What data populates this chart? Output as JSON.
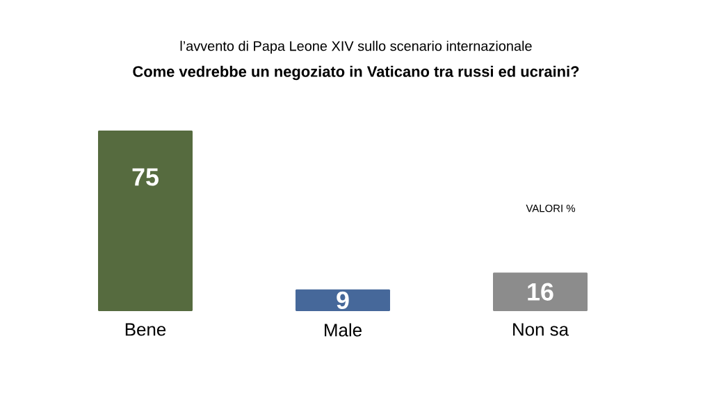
{
  "chart_data": {
    "type": "bar",
    "subtitle": "l’avvento di Papa Leone XIV sullo scenario internazionale",
    "title": "Come vedrebbe un negoziato in Vaticano tra russi ed ucraini?",
    "categories": [
      "Bene",
      "Male",
      "Non sa"
    ],
    "values": [
      75,
      9,
      16
    ],
    "colors": [
      "#566b3f",
      "#46689a",
      "#8c8c8c"
    ],
    "data_labels": true,
    "annotations": [
      "VALORI %"
    ]
  }
}
